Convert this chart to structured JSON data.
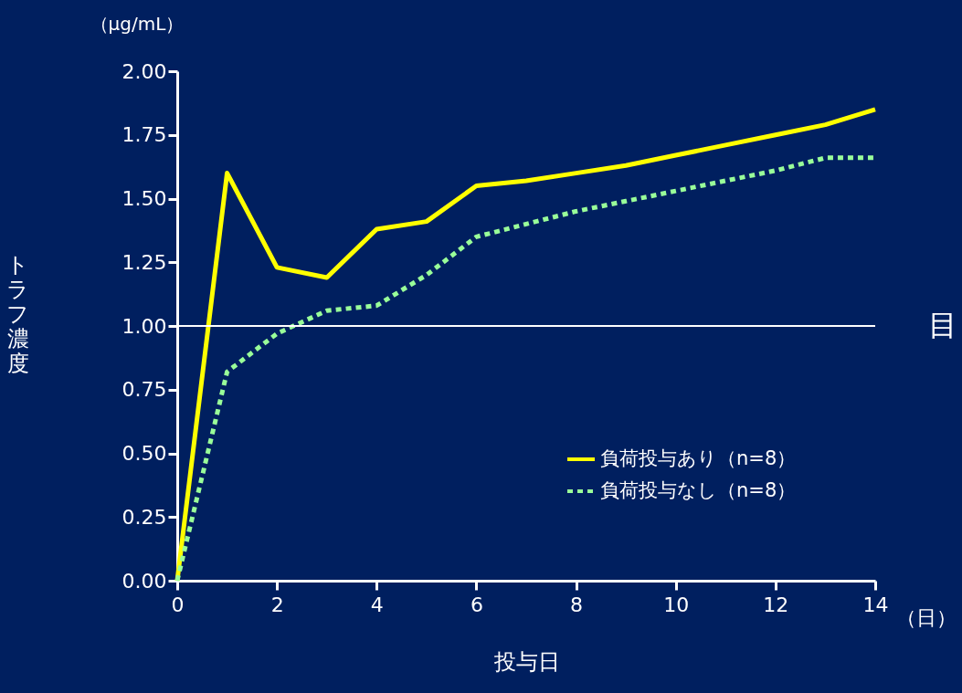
{
  "chart_data": {
    "type": "line",
    "xlabel": "投与日",
    "ylabel": "トラフ濃度",
    "annotations": [
      "（μg/mL）",
      "（日）"
    ],
    "x": [
      0,
      1,
      2,
      3,
      4,
      5,
      6,
      7,
      8,
      9,
      10,
      11,
      12,
      13,
      14
    ],
    "series": [
      {
        "name": "負荷投与あり（n=8）",
        "color": "#ffff00",
        "line_style": "solid",
        "values": [
          0,
          1.6,
          1.23,
          1.19,
          1.38,
          1.41,
          1.55,
          1.57,
          1.6,
          1.63,
          1.67,
          1.71,
          1.75,
          1.79,
          1.85
        ]
      },
      {
        "name": "負荷投与なし（n=8）",
        "color": "#99ff99",
        "line_style": "dotted",
        "values": [
          0,
          0.82,
          0.97,
          1.06,
          1.08,
          1.2,
          1.35,
          1.4,
          1.45,
          1.49,
          1.53,
          1.57,
          1.61,
          1.66,
          1.66
        ]
      }
    ],
    "xlim": [
      0,
      14
    ],
    "xticks": [
      0,
      2,
      4,
      6,
      8,
      10,
      12,
      14
    ],
    "ylim": [
      0,
      2
    ],
    "yticks": [
      {
        "value": 0,
        "label": "0.00"
      },
      {
        "value": 0.25,
        "label": "0.25"
      },
      {
        "value": 0.5,
        "label": "0.50"
      },
      {
        "value": 0.75,
        "label": "0.75"
      },
      {
        "value": 1,
        "label": "1.00"
      },
      {
        "value": 1.25,
        "label": "1.25"
      },
      {
        "value": 1.5,
        "label": "1.50"
      },
      {
        "value": 1.75,
        "label": "1.75"
      },
      {
        "value": 2,
        "label": "2.00"
      }
    ],
    "ref_lines": [
      {
        "axis": "y",
        "value": 1,
        "label": "目",
        "color": "#ffffff"
      }
    ],
    "grid": false,
    "legend": "bottom right"
  }
}
